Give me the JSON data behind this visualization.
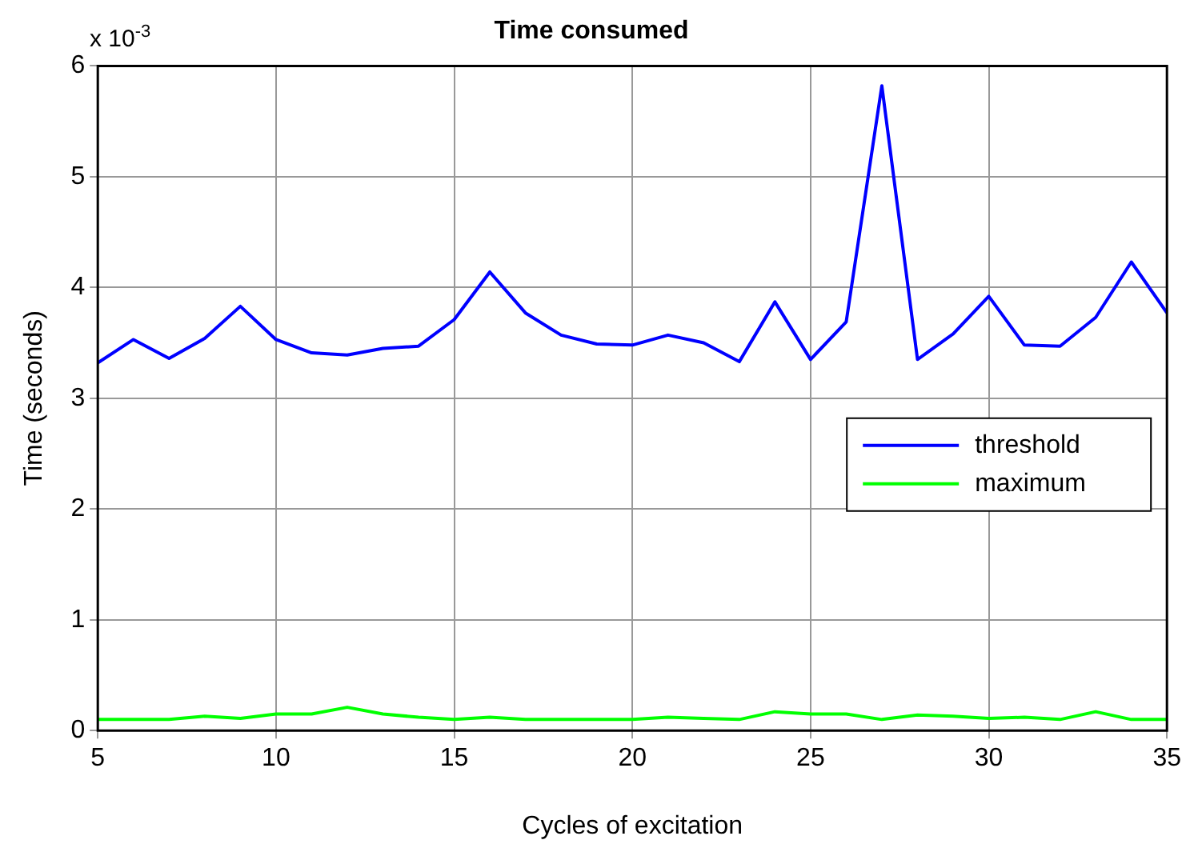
{
  "chart_data": {
    "type": "line",
    "title": "Time consumed",
    "xlabel": "Cycles of excitation",
    "ylabel": "Time (seconds)",
    "annotations": [
      "x 10$^{-3}$"
    ],
    "x": [
      5,
      6,
      7,
      8,
      9,
      10,
      11,
      12,
      13,
      14,
      15,
      16,
      17,
      18,
      19,
      20,
      21,
      22,
      23,
      24,
      25,
      26,
      27,
      28,
      29,
      30,
      31,
      32,
      33,
      34,
      35
    ],
    "series": [
      {
        "name": "threshold",
        "color": "#0000ff",
        "values": [
          3.32,
          3.53,
          3.36,
          3.54,
          3.83,
          3.53,
          3.41,
          3.39,
          3.45,
          3.47,
          3.71,
          4.14,
          3.77,
          3.57,
          3.49,
          3.48,
          3.57,
          3.5,
          3.33,
          3.87,
          3.35,
          3.69,
          5.82,
          3.35,
          3.58,
          3.92,
          3.48,
          3.47,
          3.73,
          4.23,
          3.77
        ]
      },
      {
        "name": "maximum",
        "color": "#00ff00",
        "values": [
          0.1,
          0.1,
          0.1,
          0.13,
          0.11,
          0.15,
          0.15,
          0.21,
          0.15,
          0.12,
          0.1,
          0.12,
          0.1,
          0.1,
          0.1,
          0.1,
          0.12,
          0.11,
          0.1,
          0.17,
          0.15,
          0.15,
          0.1,
          0.14,
          0.13,
          0.11,
          0.12,
          0.1,
          0.17,
          0.1,
          0.1
        ]
      }
    ],
    "xlim": [
      5,
      35
    ],
    "xticks": [
      5,
      10,
      15,
      20,
      25,
      30,
      35
    ],
    "ylim": [
      0,
      6
    ],
    "yticks": [
      0,
      1,
      2,
      3,
      4,
      5,
      6
    ],
    "grid": true,
    "legend": "right",
    "marker": "none",
    "line_style": "solid"
  }
}
